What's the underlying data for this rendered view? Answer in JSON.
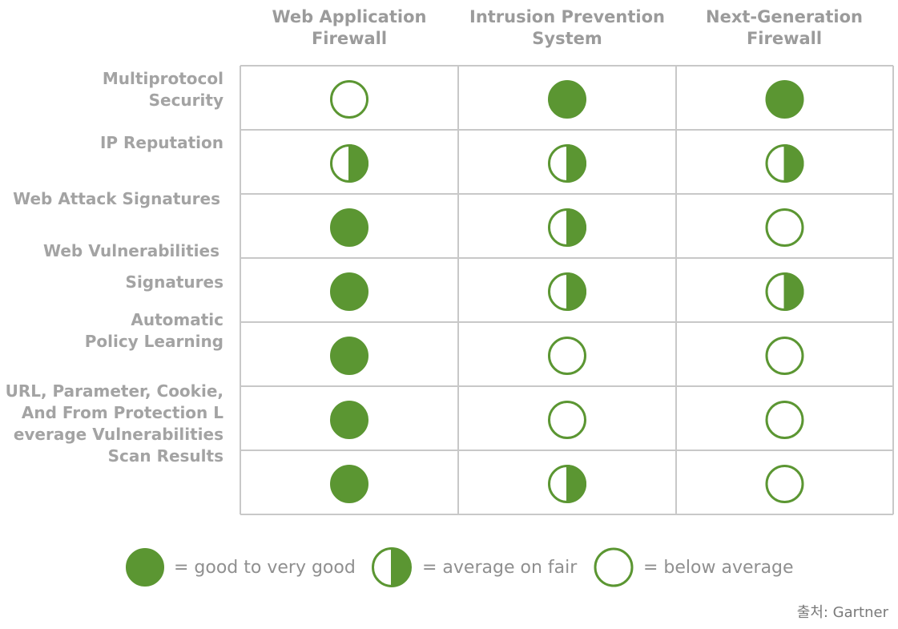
{
  "chart_data": {
    "type": "table",
    "columns": [
      "Web Application\nFirewall",
      "Intrusion Prevention\nSystem",
      "Next-Generation\nFirewall"
    ],
    "row_labels": [
      "Multiprotocol\nSecurity",
      "IP Reputation",
      "Web Attack Signatures",
      "Web Vulnerabilities",
      "Signatures",
      "Automatic\nPolicy Learning",
      "URL, Parameter, Cookie,\nAnd From Protection  L\neverage Vulnerabilities\nScan Results"
    ],
    "rows": [
      [
        "empty",
        "full",
        "full"
      ],
      [
        "half",
        "half",
        "half"
      ],
      [
        "full",
        "half",
        "empty"
      ],
      [
        "full",
        "half",
        "half"
      ],
      [
        "full",
        "empty",
        "empty"
      ],
      [
        "full",
        "empty",
        "empty"
      ],
      [
        "full",
        "half",
        "empty"
      ]
    ],
    "legend": [
      {
        "symbol": "full",
        "label": "= good to very good"
      },
      {
        "symbol": "half",
        "label": "= average on fair"
      },
      {
        "symbol": "empty",
        "label": "= below average"
      }
    ],
    "colors": {
      "green": "#5b9632",
      "grid": "#c8c8c8",
      "header": "#9b9b9b"
    }
  },
  "source": "출처: Gartner"
}
